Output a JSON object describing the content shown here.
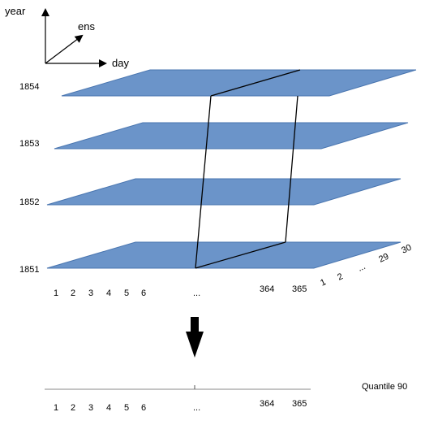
{
  "axes_legend": {
    "year_label": "year",
    "ens_label": "ens",
    "day_label": "day"
  },
  "years": [
    "1854",
    "1853",
    "1852",
    "1851"
  ],
  "day_ticks": [
    "1",
    "2",
    "3",
    "4",
    "5",
    "6",
    "...",
    "364",
    "365"
  ],
  "ens_ticks": [
    "1",
    "2",
    "...",
    "29",
    "30"
  ],
  "result": {
    "label": "Quantile 90",
    "day_ticks": [
      "1",
      "2",
      "3",
      "4",
      "5",
      "6",
      "...",
      "364",
      "365"
    ]
  },
  "colors": {
    "plane_fill": "#6b94c9",
    "plane_stroke": "#4a76b0"
  }
}
